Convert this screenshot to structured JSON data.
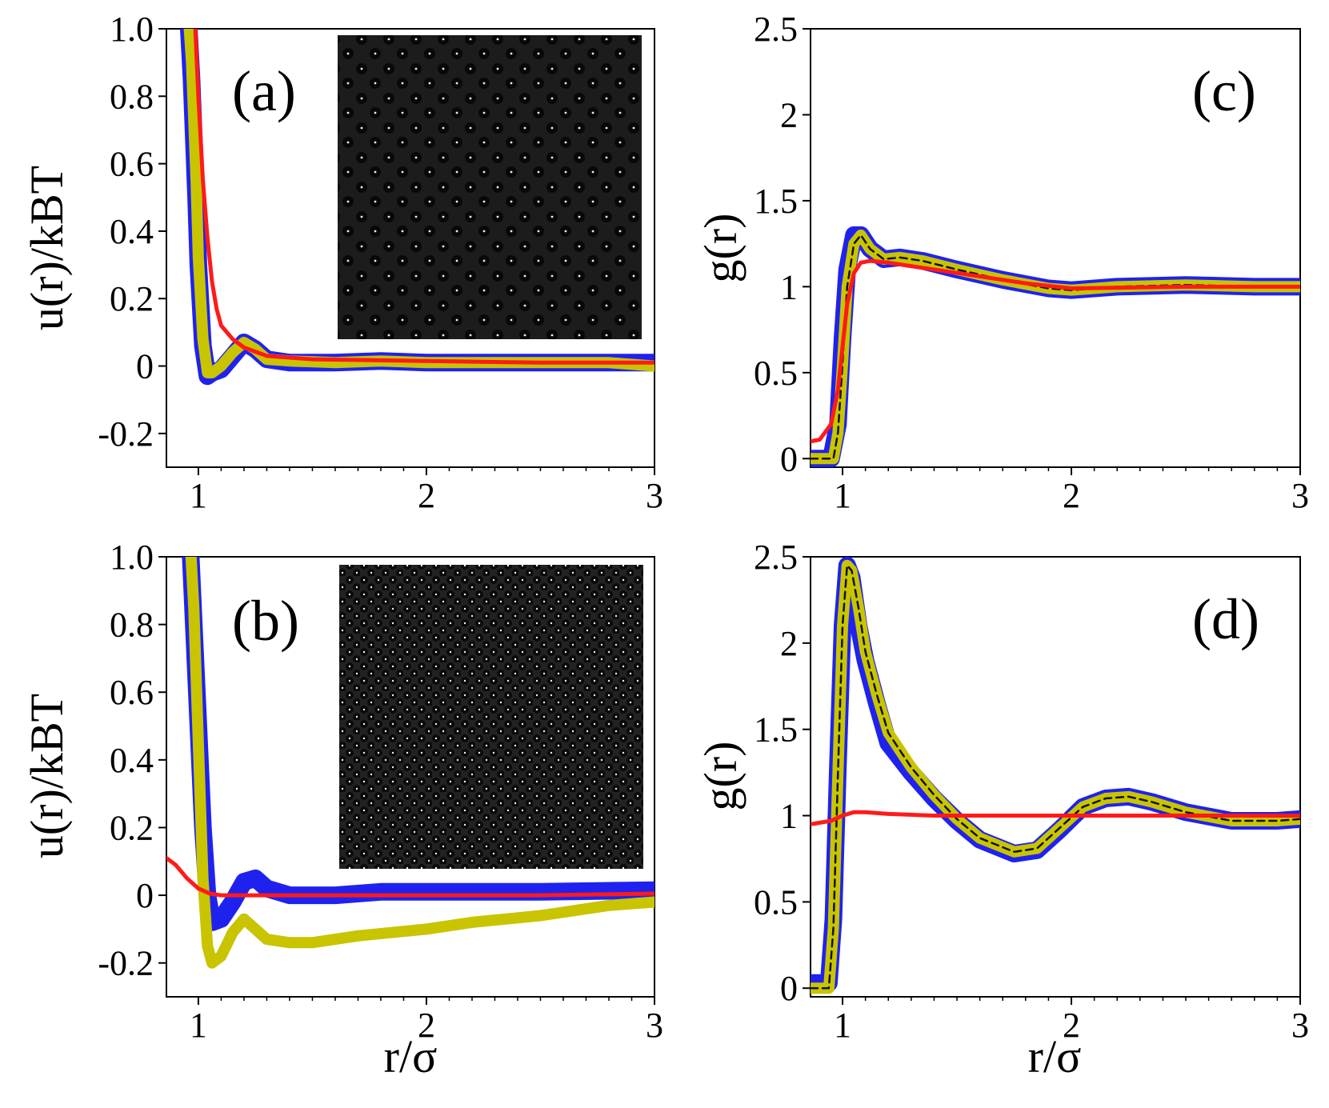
{
  "figure": {
    "xlabel": "r/σ",
    "ylabel_u": "u(r)/kBT",
    "ylabel_g": "g(r)"
  },
  "colors": {
    "blue": "#1f22ee",
    "olive": "#c8c400",
    "red": "#ff1a1a",
    "dashed": "#111111"
  },
  "chart_data": [
    {
      "id": "a",
      "type": "line",
      "panel_label": "(a)",
      "xlabel": "",
      "ylabel": "u(r)/kBT",
      "xlim": [
        0.86,
        3.0
      ],
      "ylim": [
        -0.3,
        1.0
      ],
      "xticks": [
        "1",
        "2",
        "3"
      ],
      "yticks": [
        "1.0",
        "0.8",
        "0.6",
        "0.4",
        "0.2",
        "0",
        "-0.2"
      ],
      "has_inset": true,
      "inset_density": "dilute",
      "series": [
        {
          "name": "blue band",
          "style": "band-blue",
          "x": [
            0.95,
            0.97,
            0.99,
            1.0,
            1.02,
            1.04,
            1.06,
            1.1,
            1.15,
            1.2,
            1.25,
            1.3,
            1.4,
            1.6,
            1.8,
            2.0,
            2.4,
            2.8,
            3.0
          ],
          "y": [
            1.1,
            0.85,
            0.5,
            0.3,
            0.06,
            -0.03,
            -0.02,
            -0.01,
            0.03,
            0.07,
            0.05,
            0.02,
            0.01,
            0.01,
            0.015,
            0.01,
            0.01,
            0.01,
            0.01
          ]
        },
        {
          "name": "olive band",
          "style": "band-olive",
          "x": [
            0.95,
            0.97,
            0.99,
            1.0,
            1.02,
            1.04,
            1.06,
            1.1,
            1.15,
            1.2,
            1.25,
            1.3,
            1.4,
            1.6,
            1.8,
            2.0,
            2.4,
            2.8,
            3.0
          ],
          "y": [
            1.1,
            0.9,
            0.55,
            0.32,
            0.08,
            -0.02,
            -0.02,
            0.0,
            0.04,
            0.07,
            0.05,
            0.02,
            0.015,
            0.01,
            0.015,
            0.01,
            0.01,
            0.01,
            0.0
          ]
        },
        {
          "name": "red fit",
          "style": "red",
          "x": [
            0.98,
            1.0,
            1.02,
            1.04,
            1.06,
            1.08,
            1.1,
            1.15,
            1.2,
            1.3,
            1.5,
            2.0,
            2.5,
            3.0
          ],
          "y": [
            1.1,
            0.8,
            0.55,
            0.38,
            0.25,
            0.17,
            0.12,
            0.08,
            0.055,
            0.03,
            0.02,
            0.015,
            0.01,
            0.01
          ]
        }
      ]
    },
    {
      "id": "b",
      "type": "line",
      "panel_label": "(b)",
      "xlabel": "r/σ",
      "ylabel": "u(r)/kBT",
      "xlim": [
        0.86,
        3.0
      ],
      "ylim": [
        -0.3,
        1.0
      ],
      "xticks": [
        "1",
        "2",
        "3"
      ],
      "yticks": [
        "1.0",
        "0.8",
        "0.6",
        "0.4",
        "0.2",
        "0",
        "-0.2"
      ],
      "has_inset": true,
      "inset_density": "dense",
      "series": [
        {
          "name": "blue band",
          "style": "band-blue",
          "x": [
            0.96,
            0.98,
            1.0,
            1.02,
            1.04,
            1.06,
            1.1,
            1.15,
            1.2,
            1.25,
            1.3,
            1.4,
            1.6,
            1.8,
            2.0,
            2.5,
            3.0
          ],
          "y": [
            1.1,
            0.8,
            0.5,
            0.2,
            0.0,
            -0.08,
            -0.07,
            -0.02,
            0.04,
            0.05,
            0.02,
            0.0,
            0.0,
            0.01,
            0.01,
            0.01,
            0.015
          ]
        },
        {
          "name": "olive band",
          "style": "band-olive",
          "x": [
            0.96,
            0.98,
            1.0,
            1.02,
            1.04,
            1.06,
            1.1,
            1.15,
            1.2,
            1.25,
            1.3,
            1.4,
            1.5,
            1.7,
            2.0,
            2.2,
            2.5,
            2.8,
            3.0
          ],
          "y": [
            1.1,
            0.85,
            0.45,
            0.05,
            -0.15,
            -0.2,
            -0.18,
            -0.11,
            -0.07,
            -0.1,
            -0.13,
            -0.14,
            -0.14,
            -0.12,
            -0.1,
            -0.08,
            -0.06,
            -0.03,
            -0.02
          ]
        },
        {
          "name": "red fit",
          "style": "red",
          "x": [
            0.86,
            0.9,
            0.95,
            1.0,
            1.05,
            1.1,
            1.2,
            1.3,
            1.5,
            2.0,
            2.5,
            3.0
          ],
          "y": [
            0.11,
            0.09,
            0.05,
            0.02,
            0.005,
            0.0,
            0.0,
            0.0,
            0.0,
            0.0,
            0.0,
            0.005
          ]
        }
      ]
    },
    {
      "id": "c",
      "type": "line",
      "panel_label": "(c)",
      "xlabel": "",
      "ylabel": "g(r)",
      "xlim": [
        0.86,
        3.0
      ],
      "ylim": [
        -0.05,
        2.5
      ],
      "xticks": [
        "1",
        "2",
        "3"
      ],
      "yticks": [
        "2.5",
        "2",
        "1.5",
        "1",
        "0.5",
        "0"
      ],
      "has_inset": false,
      "series": [
        {
          "name": "blue band",
          "style": "band-blue",
          "x": [
            0.86,
            0.95,
            0.98,
            1.0,
            1.02,
            1.05,
            1.08,
            1.12,
            1.18,
            1.25,
            1.35,
            1.5,
            1.7,
            1.9,
            2.0,
            2.2,
            2.5,
            2.8,
            3.0
          ],
          "y": [
            0.0,
            0.0,
            0.2,
            0.7,
            1.1,
            1.3,
            1.3,
            1.22,
            1.16,
            1.17,
            1.15,
            1.1,
            1.04,
            0.99,
            0.98,
            1.0,
            1.01,
            1.0,
            1.0
          ]
        },
        {
          "name": "olive band",
          "style": "band-olive",
          "x": [
            0.86,
            0.96,
            0.98,
            1.0,
            1.02,
            1.05,
            1.08,
            1.12,
            1.18,
            1.25,
            1.35,
            1.5,
            1.7,
            1.9,
            2.0,
            2.2,
            2.5,
            2.8,
            3.0
          ],
          "y": [
            0.0,
            0.0,
            0.15,
            0.55,
            1.0,
            1.25,
            1.3,
            1.22,
            1.16,
            1.17,
            1.15,
            1.1,
            1.04,
            0.99,
            0.98,
            1.0,
            1.01,
            1.0,
            1.0
          ]
        },
        {
          "name": "dashed",
          "style": "dashed",
          "x": [
            0.86,
            0.96,
            0.98,
            1.0,
            1.02,
            1.05,
            1.08,
            1.12,
            1.18,
            1.25,
            1.35,
            1.5,
            1.7,
            1.9,
            2.0,
            2.2,
            2.5,
            2.8,
            3.0
          ],
          "y": [
            0.0,
            0.0,
            0.15,
            0.55,
            1.0,
            1.25,
            1.3,
            1.22,
            1.16,
            1.17,
            1.15,
            1.1,
            1.04,
            0.99,
            0.98,
            1.0,
            1.01,
            1.0,
            1.0
          ]
        },
        {
          "name": "red fit",
          "style": "red",
          "x": [
            0.86,
            0.9,
            0.95,
            0.98,
            1.0,
            1.02,
            1.05,
            1.08,
            1.12,
            1.2,
            1.3,
            1.5,
            1.8,
            2.0,
            2.5,
            3.0
          ],
          "y": [
            0.1,
            0.11,
            0.2,
            0.4,
            0.65,
            0.9,
            1.08,
            1.14,
            1.15,
            1.14,
            1.12,
            1.08,
            1.02,
            0.99,
            1.0,
            1.0
          ]
        }
      ]
    },
    {
      "id": "d",
      "type": "line",
      "panel_label": "(d)",
      "xlabel": "r/σ",
      "ylabel": "g(r)",
      "xlim": [
        0.86,
        3.0
      ],
      "ylim": [
        -0.05,
        2.5
      ],
      "xticks": [
        "1",
        "2",
        "3"
      ],
      "yticks": [
        "2.5",
        "2",
        "1.5",
        "1",
        "0.5",
        "0"
      ],
      "has_inset": false,
      "series": [
        {
          "name": "blue band",
          "style": "band-blue",
          "x": [
            0.86,
            0.94,
            0.96,
            0.98,
            1.0,
            1.02,
            1.04,
            1.07,
            1.1,
            1.15,
            1.2,
            1.3,
            1.4,
            1.5,
            1.6,
            1.75,
            1.85,
            1.95,
            2.05,
            2.15,
            2.25,
            2.35,
            2.5,
            2.7,
            2.9,
            3.0
          ],
          "y": [
            0.03,
            0.03,
            0.4,
            1.3,
            2.1,
            2.45,
            2.38,
            2.1,
            1.9,
            1.65,
            1.42,
            1.25,
            1.1,
            0.97,
            0.86,
            0.78,
            0.8,
            0.92,
            1.05,
            1.1,
            1.11,
            1.08,
            1.02,
            0.97,
            0.97,
            0.98
          ]
        },
        {
          "name": "olive band",
          "style": "band-olive",
          "x": [
            0.86,
            0.94,
            0.96,
            0.98,
            1.0,
            1.02,
            1.04,
            1.07,
            1.1,
            1.15,
            1.2,
            1.3,
            1.4,
            1.5,
            1.6,
            1.75,
            1.85,
            1.95,
            2.05,
            2.15,
            2.25,
            2.35,
            2.5,
            2.7,
            2.9,
            3.0
          ],
          "y": [
            0.0,
            0.0,
            0.35,
            1.25,
            2.1,
            2.45,
            2.42,
            2.2,
            1.95,
            1.7,
            1.48,
            1.28,
            1.12,
            0.98,
            0.87,
            0.79,
            0.81,
            0.93,
            1.05,
            1.1,
            1.11,
            1.08,
            1.02,
            0.97,
            0.97,
            0.98
          ]
        },
        {
          "name": "dashed",
          "style": "dashed",
          "x": [
            0.86,
            0.94,
            0.96,
            0.98,
            1.0,
            1.02,
            1.04,
            1.07,
            1.1,
            1.15,
            1.2,
            1.3,
            1.4,
            1.5,
            1.6,
            1.75,
            1.85,
            1.95,
            2.05,
            2.15,
            2.25,
            2.35,
            2.5,
            2.7,
            2.9,
            3.0
          ],
          "y": [
            0.0,
            0.0,
            0.35,
            1.25,
            2.1,
            2.45,
            2.42,
            2.2,
            1.95,
            1.7,
            1.48,
            1.28,
            1.12,
            0.98,
            0.87,
            0.79,
            0.81,
            0.93,
            1.05,
            1.1,
            1.11,
            1.08,
            1.02,
            0.97,
            0.97,
            0.98
          ]
        },
        {
          "name": "red fit",
          "style": "red",
          "x": [
            0.86,
            0.95,
            1.0,
            1.05,
            1.1,
            1.2,
            1.4,
            1.6,
            2.0,
            2.5,
            3.0
          ],
          "y": [
            0.95,
            0.97,
            1.0,
            1.02,
            1.02,
            1.01,
            1.0,
            1.0,
            1.0,
            1.0,
            1.0
          ]
        }
      ]
    }
  ]
}
